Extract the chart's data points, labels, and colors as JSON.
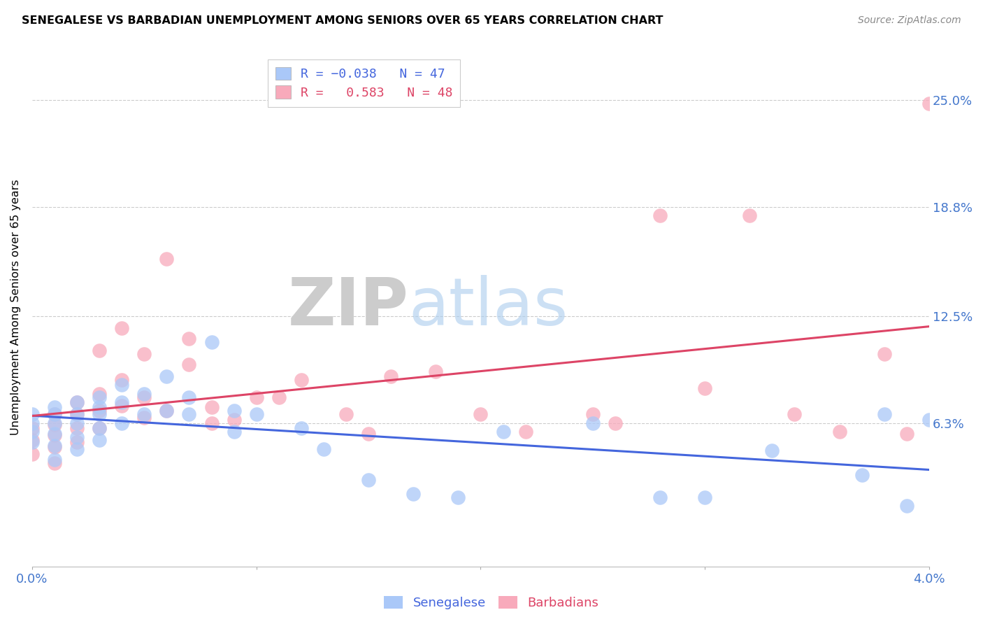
{
  "title": "SENEGALESE VS BARBADIAN UNEMPLOYMENT AMONG SENIORS OVER 65 YEARS CORRELATION CHART",
  "source": "Source: ZipAtlas.com",
  "ylabel": "Unemployment Among Seniors over 65 years",
  "ytick_labels": [
    "6.3%",
    "12.5%",
    "18.8%",
    "25.0%"
  ],
  "ytick_values": [
    0.063,
    0.125,
    0.188,
    0.25
  ],
  "xlim": [
    0.0,
    0.04
  ],
  "ylim": [
    -0.02,
    0.28
  ],
  "senegalese_x": [
    0.0,
    0.0,
    0.0,
    0.0,
    0.001,
    0.001,
    0.001,
    0.001,
    0.001,
    0.001,
    0.002,
    0.002,
    0.002,
    0.002,
    0.002,
    0.003,
    0.003,
    0.003,
    0.003,
    0.003,
    0.004,
    0.004,
    0.004,
    0.005,
    0.005,
    0.006,
    0.006,
    0.007,
    0.007,
    0.008,
    0.009,
    0.009,
    0.01,
    0.012,
    0.013,
    0.015,
    0.017,
    0.019,
    0.021,
    0.025,
    0.028,
    0.03,
    0.033,
    0.037,
    0.038,
    0.039,
    0.04
  ],
  "senegalese_y": [
    0.068,
    0.063,
    0.058,
    0.052,
    0.072,
    0.068,
    0.063,
    0.057,
    0.05,
    0.042,
    0.075,
    0.068,
    0.063,
    0.055,
    0.048,
    0.078,
    0.072,
    0.068,
    0.06,
    0.053,
    0.085,
    0.075,
    0.063,
    0.08,
    0.068,
    0.09,
    0.07,
    0.078,
    0.068,
    0.11,
    0.07,
    0.058,
    0.068,
    0.06,
    0.048,
    0.03,
    0.022,
    0.02,
    0.058,
    0.063,
    0.02,
    0.02,
    0.047,
    0.033,
    0.068,
    0.015,
    0.065
  ],
  "barbadian_x": [
    0.0,
    0.0,
    0.0,
    0.001,
    0.001,
    0.001,
    0.001,
    0.001,
    0.002,
    0.002,
    0.002,
    0.002,
    0.003,
    0.003,
    0.003,
    0.003,
    0.004,
    0.004,
    0.004,
    0.005,
    0.005,
    0.005,
    0.006,
    0.006,
    0.007,
    0.007,
    0.008,
    0.008,
    0.009,
    0.01,
    0.011,
    0.012,
    0.014,
    0.015,
    0.016,
    0.018,
    0.02,
    0.022,
    0.025,
    0.026,
    0.028,
    0.03,
    0.032,
    0.034,
    0.036,
    0.038,
    0.039,
    0.04
  ],
  "barbadian_y": [
    0.06,
    0.053,
    0.045,
    0.068,
    0.062,
    0.056,
    0.049,
    0.04,
    0.075,
    0.068,
    0.06,
    0.052,
    0.105,
    0.08,
    0.07,
    0.06,
    0.118,
    0.088,
    0.073,
    0.103,
    0.078,
    0.066,
    0.158,
    0.07,
    0.112,
    0.097,
    0.072,
    0.063,
    0.065,
    0.078,
    0.078,
    0.088,
    0.068,
    0.057,
    0.09,
    0.093,
    0.068,
    0.058,
    0.068,
    0.063,
    0.183,
    0.083,
    0.183,
    0.068,
    0.058,
    0.103,
    0.057,
    0.248
  ],
  "blue_color": "#aac8f8",
  "pink_color": "#f8aabb",
  "blue_line_color": "#4466dd",
  "pink_line_color": "#dd4466",
  "watermark_zip": "ZIP",
  "watermark_atlas": "atlas",
  "background_color": "#ffffff",
  "grid_color": "#cccccc"
}
